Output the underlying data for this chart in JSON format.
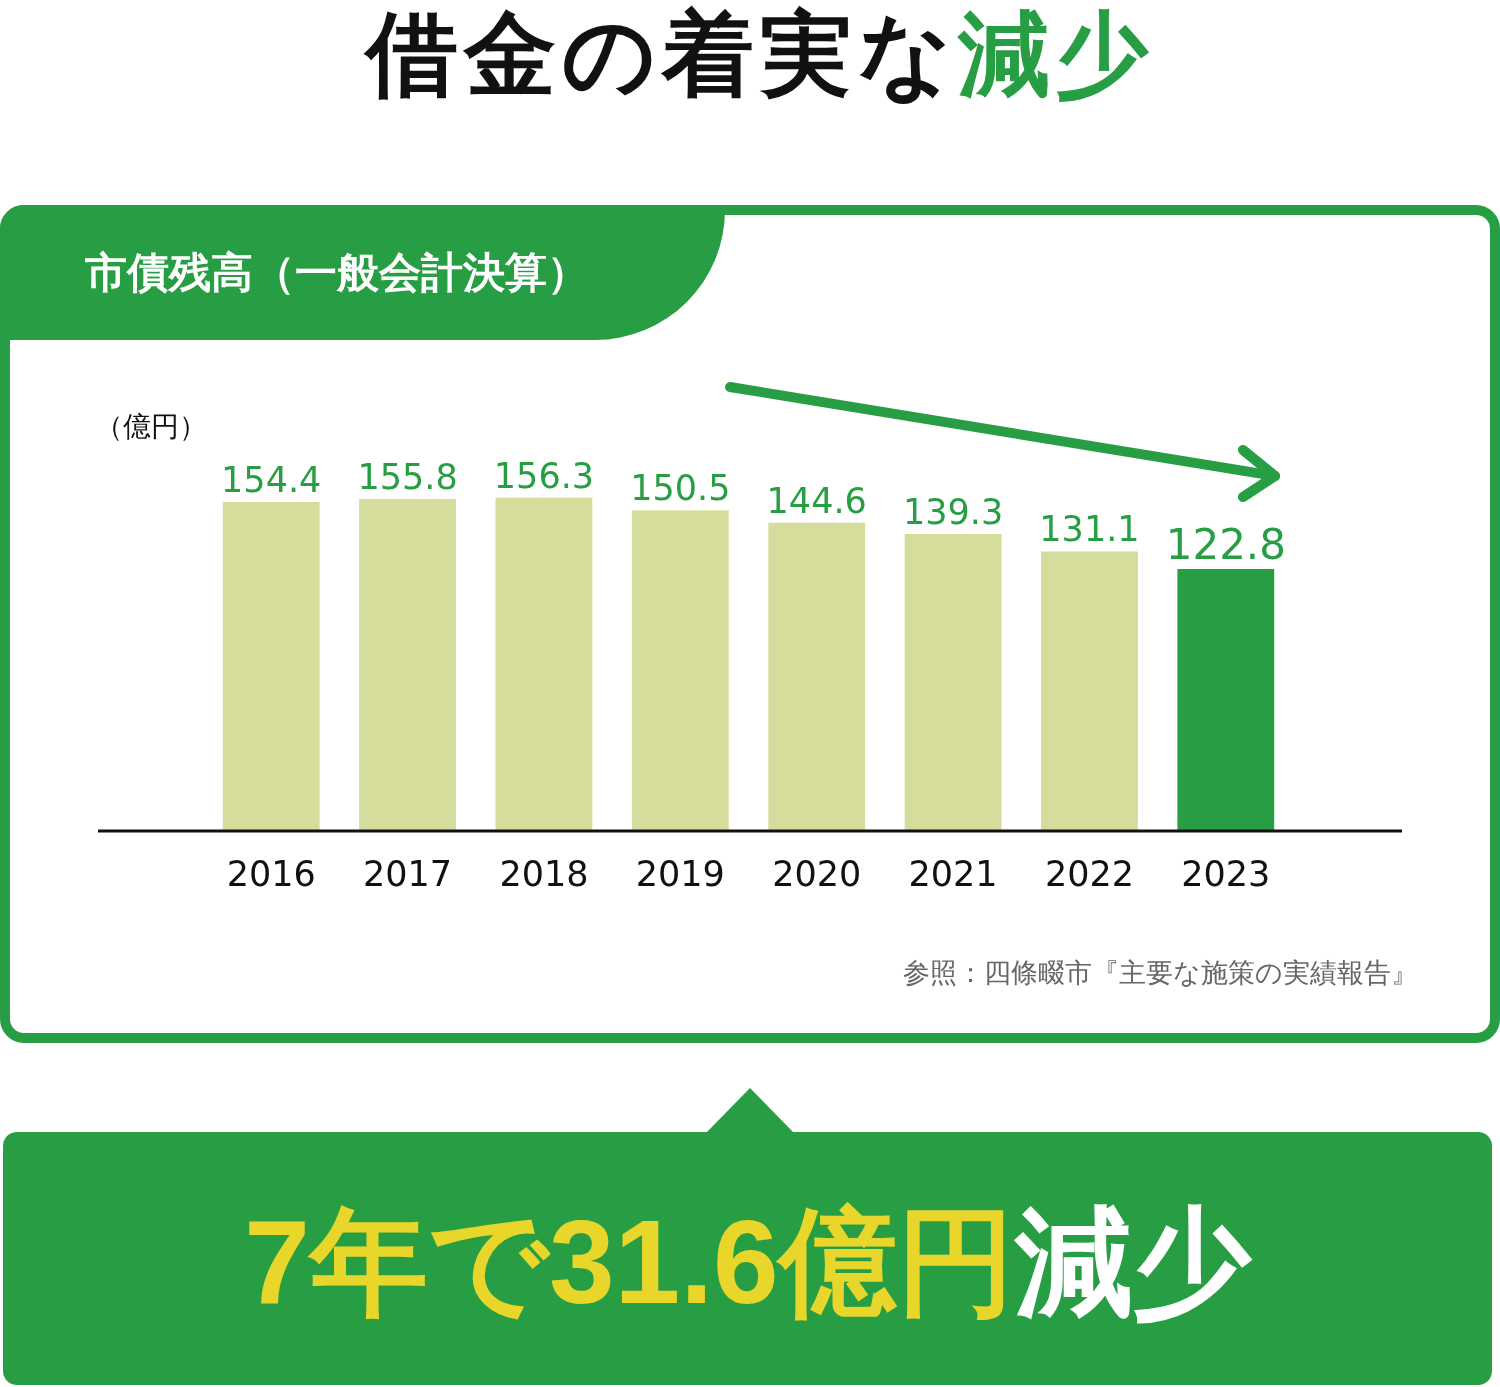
{
  "chart_data": {
    "type": "bar",
    "title": "借金の着実な減少",
    "subtitle": "市債残高（一般会計決算）",
    "ylabel": "（億円）",
    "categories": [
      "2016",
      "2017",
      "2018",
      "2019",
      "2020",
      "2021",
      "2022",
      "2023"
    ],
    "values": [
      154.4,
      155.8,
      156.3,
      150.5,
      144.6,
      139.3,
      131.1,
      122.8
    ],
    "colors": [
      "#d6dc9c",
      "#d6dc9c",
      "#d6dc9c",
      "#d6dc9c",
      "#d6dc9c",
      "#d6dc9c",
      "#d6dc9c",
      "#289e44"
    ],
    "tick_labels": "x",
    "data_labels": true,
    "annotations": [
      "参照：四條畷市『主要な施策の実績報告』",
      "7年で31.6億円減少"
    ]
  }
}
